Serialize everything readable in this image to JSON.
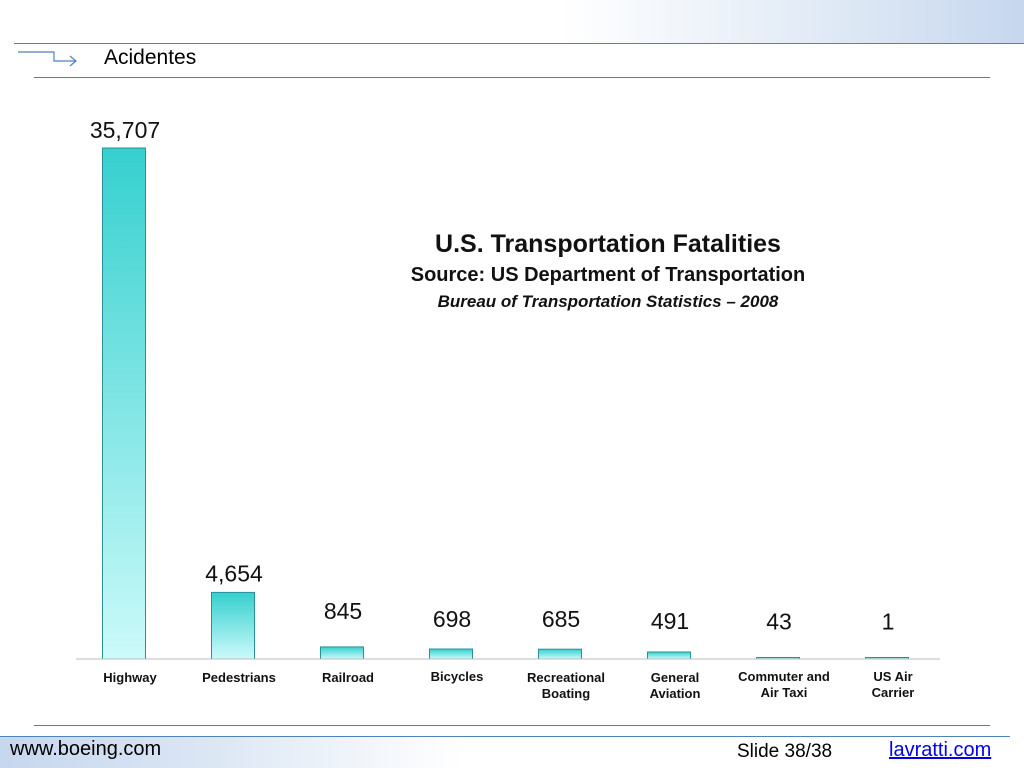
{
  "slide": {
    "title": "Acidentes",
    "footer_left": "www.boeing.com",
    "slide_number": "Slide 38/38",
    "footer_link": "lavratti.com"
  },
  "colors": {
    "accent_line": "#4f81bd",
    "bar_top": "#35d0cf",
    "bar_bottom": "#ccfafa",
    "bar_stroke": "#2a8f96"
  },
  "chart_data": {
    "type": "bar",
    "title": "U.S. Transportation Fatalities",
    "subtitle": "Source:  US Department of Transportation",
    "note": "Bureau of Transportation Statistics – 2008",
    "categories": [
      [
        "Highway"
      ],
      [
        "Pedestrians"
      ],
      [
        "Railroad"
      ],
      [
        "Bicycles"
      ],
      [
        "Recreational",
        "Boating"
      ],
      [
        "General",
        "Aviation"
      ],
      [
        "Commuter and",
        "Air Taxi"
      ],
      [
        "US Air",
        "Carrier"
      ]
    ],
    "values": [
      35707,
      4654,
      845,
      698,
      685,
      491,
      43,
      1
    ],
    "value_labels": [
      "35,707",
      "4,654",
      "845",
      "698",
      "685",
      "491",
      "43",
      "1"
    ],
    "ylim": [
      0,
      35707
    ],
    "grid": false,
    "legend": "none"
  }
}
